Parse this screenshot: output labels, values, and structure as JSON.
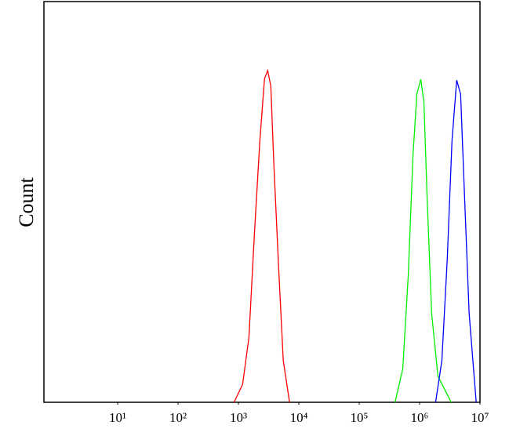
{
  "chart_data": {
    "type": "line",
    "y_label": "Count",
    "xscale": "log",
    "xlim": [
      0.6,
      10000000
    ],
    "ylim": [
      0,
      100
    ],
    "xticks": [
      {
        "value": 10,
        "label": "10¹"
      },
      {
        "value": 100,
        "label": "10²"
      },
      {
        "value": 1000,
        "label": "10³"
      },
      {
        "value": 10000,
        "label": "10⁴"
      },
      {
        "value": 100000,
        "label": "10⁵"
      },
      {
        "value": 1000000,
        "label": "10⁶"
      },
      {
        "value": 10000000,
        "label": "10⁷"
      }
    ],
    "series": [
      {
        "color": "#ff0000",
        "x": [
          847,
          1175,
          1490,
          1835,
          2260,
          2700,
          3050,
          3435,
          3865,
          4620,
          5530,
          7010
        ],
        "values": [
          0,
          4.5,
          16.2,
          41.7,
          65.2,
          80.8,
          82.8,
          78.9,
          59.3,
          33.9,
          10.4,
          0
        ]
      },
      {
        "color": "#00ee00",
        "x": [
          392000,
          527000,
          649000,
          776000,
          901000,
          1045000,
          1178000,
          1327000,
          1586000,
          2012000,
          3340000
        ],
        "values": [
          0,
          8.4,
          31.9,
          61.3,
          76.9,
          80.6,
          75.0,
          51.5,
          22.1,
          6.5,
          0
        ]
      },
      {
        "color": "#0000ff",
        "x": [
          1841000,
          2337000,
          2877000,
          3443000,
          4113000,
          4772000,
          5542000,
          6628000,
          8670000
        ],
        "values": [
          0,
          10.4,
          35.8,
          65.2,
          80.4,
          76.9,
          51.5,
          22.1,
          0
        ]
      }
    ]
  }
}
